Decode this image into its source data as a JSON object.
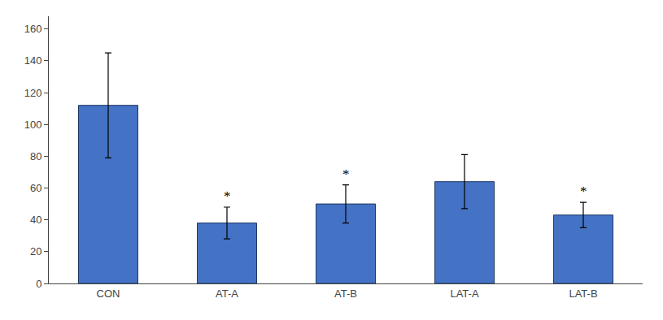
{
  "chart_data": {
    "type": "bar",
    "categories": [
      "CON",
      "AT-A",
      "AT-B",
      "LAT-A",
      "LAT-B"
    ],
    "values": [
      112,
      38,
      50,
      64,
      43
    ],
    "errors": [
      33,
      10,
      12,
      17,
      8
    ],
    "color": "#4472C4",
    "ylim": [
      0,
      168
    ],
    "yticks": [
      0,
      20,
      40,
      60,
      80,
      100,
      120,
      140,
      160
    ],
    "grid": false,
    "annotations": [
      {
        "category": "AT-A",
        "text": "*"
      },
      {
        "category": "AT-B",
        "text": "*"
      },
      {
        "category": "LAT-B",
        "text": "*"
      }
    ]
  }
}
